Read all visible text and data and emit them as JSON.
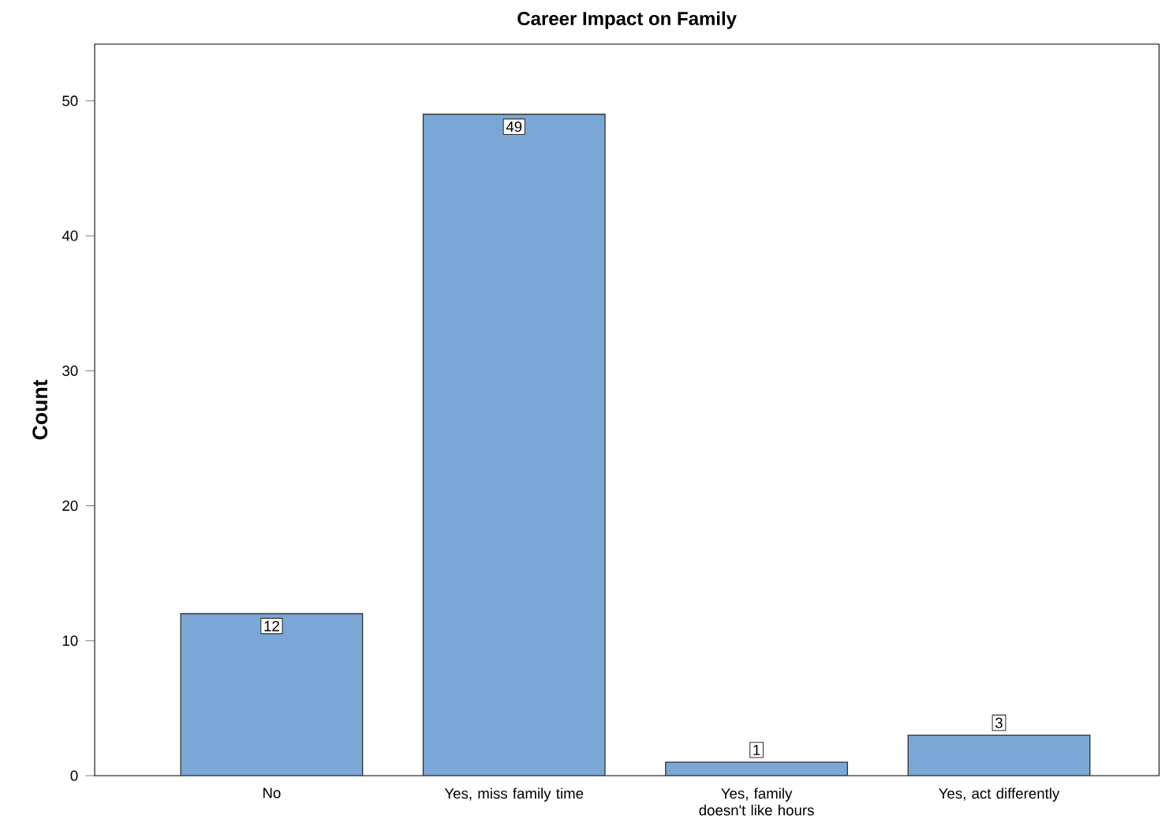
{
  "chart_data": {
    "type": "bar",
    "title": "Career Impact on Family",
    "ylabel": "Count",
    "categories": [
      "No",
      "Yes, miss family time",
      "Yes, family doesn't like hours",
      "Yes, act differently"
    ],
    "values": [
      12,
      49,
      1,
      3
    ],
    "color": "#7ba7d6",
    "ylim": [
      0,
      54.2
    ],
    "yticks": [
      0,
      10,
      20,
      30,
      40,
      50
    ],
    "data_labels": true,
    "grid": false
  }
}
